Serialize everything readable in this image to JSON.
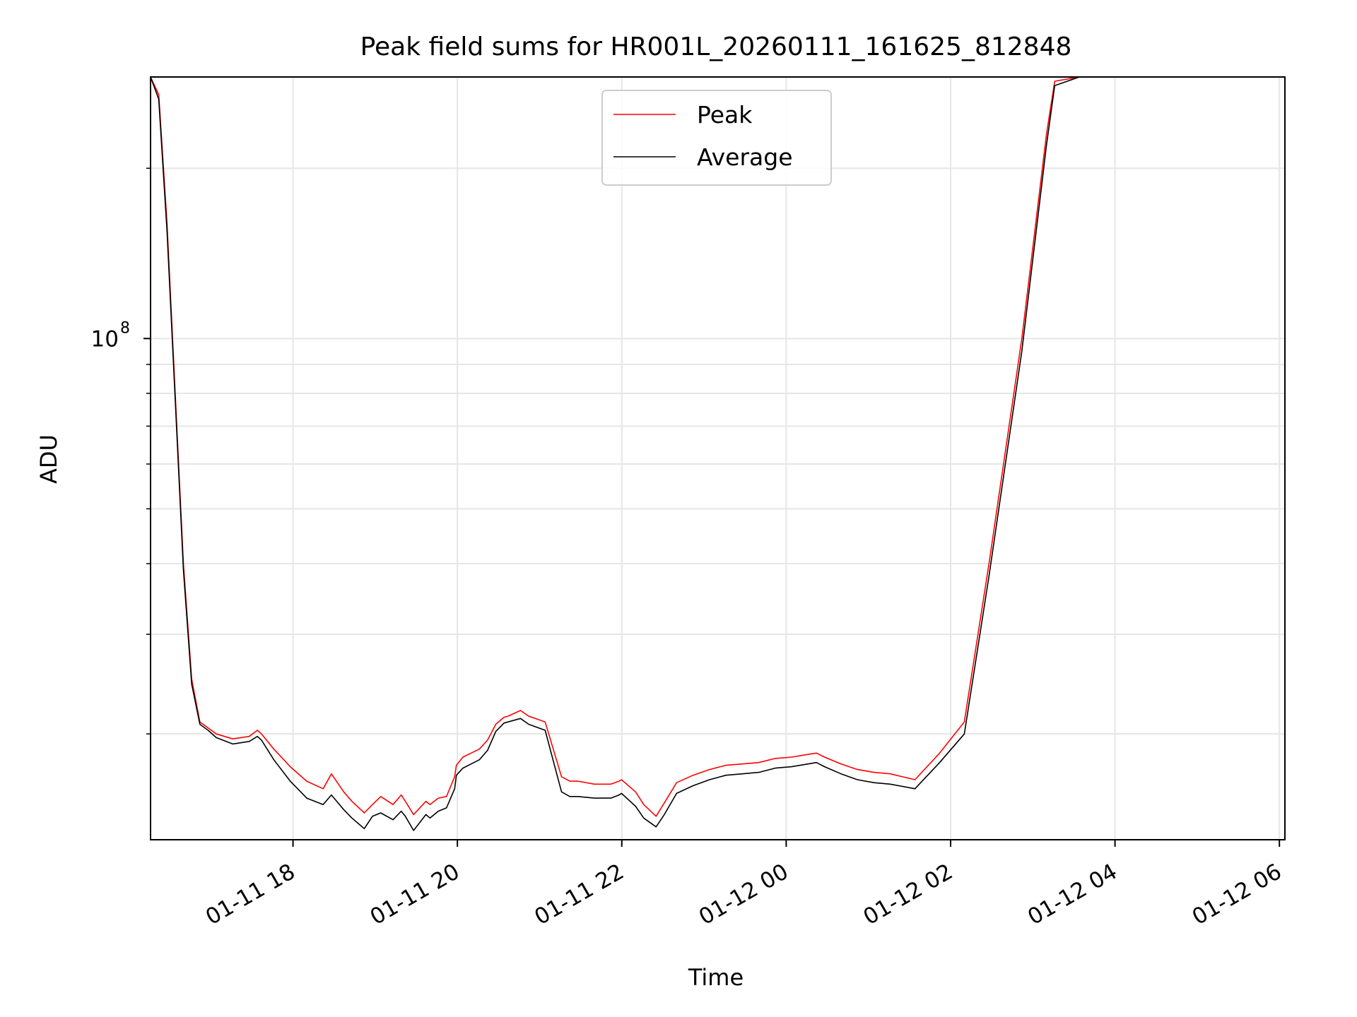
{
  "chart_data": {
    "type": "line",
    "title": "Peak field sums for HR001L_20260111_161625_812848",
    "xlabel": "Time",
    "ylabel": "ADU",
    "y_scale": "log",
    "ylim": [
      13000000,
      290000000
    ],
    "y_major_ticks": [
      {
        "value": 100000000,
        "base": "10",
        "exp": "8"
      }
    ],
    "y_minor_ticks": [
      20000000,
      30000000,
      40000000,
      50000000,
      60000000,
      70000000,
      80000000,
      90000000,
      200000000
    ],
    "x_unit": "hours since 2026-01-11 16:16",
    "xlim": [
      0,
      13.8
    ],
    "x_ticks": [
      {
        "value": 1.733,
        "label": "01-11 18"
      },
      {
        "value": 3.733,
        "label": "01-11 20"
      },
      {
        "value": 5.733,
        "label": "01-11 22"
      },
      {
        "value": 7.733,
        "label": "01-12 00"
      },
      {
        "value": 9.733,
        "label": "01-12 02"
      },
      {
        "value": 11.733,
        "label": "01-12 04"
      },
      {
        "value": 13.733,
        "label": "01-12 06"
      }
    ],
    "grid": true,
    "legend_position": "top-center",
    "series": [
      {
        "name": "Peak",
        "color": "#ff0000",
        "x": [
          0.0,
          0.1,
          0.2,
          0.3,
          0.4,
          0.5,
          0.6,
          0.7,
          0.8,
          1.0,
          1.2,
          1.3,
          1.35,
          1.5,
          1.7,
          1.9,
          2.1,
          2.2,
          2.35,
          2.45,
          2.6,
          2.7,
          2.8,
          2.95,
          3.05,
          3.1,
          3.2,
          3.35,
          3.4,
          3.5,
          3.6,
          3.7,
          3.72,
          3.8,
          3.9,
          4.0,
          4.1,
          4.2,
          4.3,
          4.35,
          4.5,
          4.6,
          4.8,
          5.0,
          5.1,
          5.2,
          5.4,
          5.6,
          5.7,
          5.73,
          5.9,
          6.0,
          6.15,
          6.25,
          6.4,
          6.6,
          6.8,
          7.0,
          7.2,
          7.4,
          7.6,
          7.8,
          8.0,
          8.1,
          8.2,
          8.4,
          8.6,
          8.8,
          9.0,
          9.3,
          9.6,
          9.9,
          10.2,
          10.6,
          10.9,
          11.0,
          11.3,
          11.6,
          11.9,
          12.2,
          12.4,
          12.7,
          12.9,
          13.0,
          13.1,
          13.15,
          13.3,
          13.45,
          13.6,
          13.7,
          13.8
        ],
        "values": [
          290000000,
          270000000,
          160000000,
          80000000,
          40000000,
          25000000,
          21000000,
          20500000,
          20000000,
          19600000,
          19800000,
          20300000,
          20000000,
          18800000,
          17500000,
          16500000,
          16000000,
          17000000,
          15800000,
          15200000,
          14500000,
          15000000,
          15500000,
          15000000,
          15600000,
          15200000,
          14400000,
          15200000,
          15000000,
          15400000,
          15500000,
          16800000,
          17600000,
          18200000,
          18500000,
          18800000,
          19500000,
          20800000,
          21400000,
          21500000,
          22000000,
          21500000,
          21000000,
          16800000,
          16500000,
          16500000,
          16300000,
          16300000,
          16500000,
          16600000,
          15800000,
          15000000,
          14300000,
          15100000,
          16400000,
          16900000,
          17300000,
          17600000,
          17700000,
          17800000,
          18100000,
          18200000,
          18400000,
          18500000,
          18200000,
          17700000,
          17300000,
          17100000,
          17000000,
          16600000,
          18500000,
          21000000,
          40000000,
          100000000,
          230000000,
          285000000,
          290000000,
          290000000,
          290000000,
          290000000,
          290000000,
          290000000,
          290000000,
          290000000,
          290000000,
          290000000,
          290000000,
          290000000,
          290000000,
          290000000,
          290000000
        ]
      },
      {
        "name": "Average",
        "color": "#000000",
        "x": [
          0.0,
          0.1,
          0.2,
          0.3,
          0.4,
          0.5,
          0.6,
          0.7,
          0.8,
          1.0,
          1.2,
          1.3,
          1.35,
          1.5,
          1.7,
          1.9,
          2.1,
          2.2,
          2.35,
          2.45,
          2.6,
          2.7,
          2.8,
          2.95,
          3.05,
          3.1,
          3.2,
          3.35,
          3.4,
          3.5,
          3.6,
          3.7,
          3.72,
          3.8,
          3.9,
          4.0,
          4.1,
          4.2,
          4.3,
          4.35,
          4.5,
          4.6,
          4.8,
          5.0,
          5.1,
          5.2,
          5.4,
          5.6,
          5.7,
          5.73,
          5.9,
          6.0,
          6.15,
          6.25,
          6.4,
          6.6,
          6.8,
          7.0,
          7.2,
          7.4,
          7.6,
          7.8,
          8.0,
          8.1,
          8.2,
          8.4,
          8.6,
          8.8,
          9.0,
          9.3,
          9.6,
          9.9,
          10.2,
          10.6,
          10.9,
          11.0,
          11.3,
          11.6,
          11.9,
          12.2,
          12.4,
          12.7,
          12.9,
          13.0,
          13.1,
          13.15,
          13.3,
          13.45,
          13.6,
          13.7,
          13.8
        ],
        "values": [
          290000000,
          265000000,
          155000000,
          78000000,
          39000000,
          24500000,
          20800000,
          20300000,
          19700000,
          19200000,
          19400000,
          19800000,
          19500000,
          18000000,
          16500000,
          15400000,
          15000000,
          15600000,
          14700000,
          14200000,
          13600000,
          14300000,
          14500000,
          14100000,
          14600000,
          14300000,
          13500000,
          14400000,
          14200000,
          14600000,
          14800000,
          16000000,
          16900000,
          17400000,
          17700000,
          18000000,
          18700000,
          20200000,
          20900000,
          21000000,
          21300000,
          20800000,
          20300000,
          15800000,
          15500000,
          15500000,
          15400000,
          15400000,
          15600000,
          15700000,
          14900000,
          14200000,
          13700000,
          14400000,
          15700000,
          16200000,
          16600000,
          16900000,
          17000000,
          17100000,
          17400000,
          17500000,
          17700000,
          17800000,
          17500000,
          17000000,
          16600000,
          16400000,
          16300000,
          16000000,
          17800000,
          20000000,
          38000000,
          95000000,
          220000000,
          280000000,
          290000000,
          290000000,
          290000000,
          290000000,
          290000000,
          290000000,
          290000000,
          290000000,
          290000000,
          290000000,
          290000000,
          290000000,
          290000000,
          290000000,
          290000000
        ]
      }
    ]
  }
}
